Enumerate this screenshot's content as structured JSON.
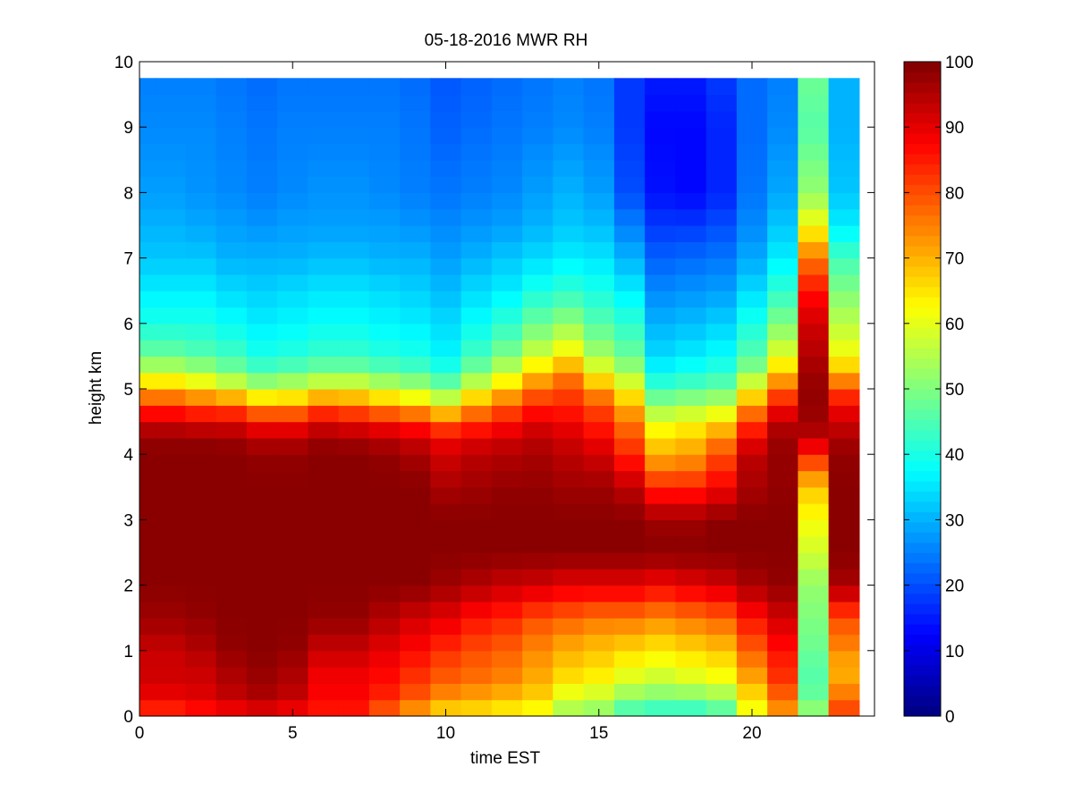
{
  "chart_data": {
    "type": "heatmap",
    "title": "05-18-2016 MWR RH",
    "xlabel": "time EST",
    "ylabel": "height km",
    "xlim": [
      0,
      24
    ],
    "ylim": [
      0,
      10
    ],
    "x_ticks": [
      0,
      5,
      10,
      15,
      20
    ],
    "y_ticks": [
      0,
      1,
      2,
      3,
      4,
      5,
      6,
      7,
      8,
      9,
      10
    ],
    "colorbar": {
      "min": 0,
      "max": 100,
      "ticks": [
        0,
        10,
        20,
        30,
        40,
        50,
        60,
        70,
        80,
        90,
        100
      ],
      "colormap": "jet"
    },
    "grid": false,
    "time_step_hours": 1,
    "height_bin_km": 0.25,
    "data_top_km": 9.75,
    "data_end_hour": 23.5,
    "x": [
      0,
      1,
      2,
      3,
      4,
      5,
      6,
      7,
      8,
      9,
      10,
      11,
      12,
      13,
      14,
      15,
      16,
      17,
      18,
      19,
      20,
      21,
      22,
      23
    ],
    "heights_km": [
      0,
      0.25,
      0.5,
      0.75,
      1,
      1.5,
      2,
      2.5,
      3,
      3.5,
      4,
      4.25,
      4.5,
      4.75,
      5,
      5.25,
      5.5,
      6,
      6.5,
      7,
      7.5,
      8,
      9,
      9.75
    ],
    "profiles": [
      [
        82,
        88,
        92,
        92,
        93,
        97,
        99,
        99,
        99,
        99,
        99,
        98,
        92,
        82,
        70,
        58,
        48,
        40,
        36,
        32,
        30,
        28,
        26,
        25
      ],
      [
        82,
        88,
        92,
        92,
        93,
        97,
        99,
        99,
        99,
        99,
        99,
        98,
        92,
        82,
        70,
        58,
        48,
        40,
        36,
        32,
        30,
        28,
        26,
        25
      ],
      [
        84,
        90,
        92,
        93,
        95,
        98,
        99,
        99,
        99,
        99,
        99,
        98,
        90,
        80,
        66,
        55,
        46,
        40,
        36,
        32,
        29,
        27,
        26,
        25
      ],
      [
        86,
        93,
        95,
        96,
        98,
        99,
        99,
        99,
        99,
        99,
        99,
        97,
        90,
        78,
        62,
        50,
        44,
        38,
        34,
        30,
        28,
        26,
        25,
        24
      ],
      [
        88,
        95,
        97,
        98,
        99,
        99,
        99,
        99,
        99,
        99,
        98,
        94,
        86,
        72,
        56,
        46,
        40,
        36,
        33,
        30,
        27,
        25,
        24,
        23
      ],
      [
        86,
        93,
        95,
        96,
        98,
        99,
        99,
        99,
        99,
        99,
        98,
        94,
        86,
        72,
        58,
        48,
        41,
        37,
        34,
        30,
        28,
        26,
        25,
        24
      ],
      [
        84,
        88,
        88,
        90,
        93,
        98,
        99,
        99,
        99,
        99,
        99,
        97,
        90,
        78,
        62,
        50,
        43,
        38,
        35,
        31,
        28,
        27,
        25,
        24
      ],
      [
        84,
        88,
        88,
        90,
        93,
        98,
        99,
        99,
        99,
        99,
        99,
        96,
        88,
        76,
        62,
        50,
        43,
        38,
        35,
        31,
        28,
        27,
        25,
        24
      ],
      [
        76,
        84,
        86,
        88,
        90,
        95,
        99,
        99,
        99,
        99,
        98,
        94,
        86,
        72,
        58,
        48,
        41,
        37,
        34,
        30,
        28,
        26,
        25,
        24
      ],
      [
        70,
        78,
        82,
        84,
        87,
        92,
        99,
        99,
        99,
        99,
        96,
        92,
        84,
        68,
        55,
        46,
        40,
        36,
        33,
        30,
        27,
        25,
        24,
        23
      ],
      [
        64,
        72,
        78,
        80,
        83,
        90,
        97,
        99,
        99,
        96,
        92,
        88,
        78,
        62,
        50,
        42,
        37,
        34,
        31,
        28,
        26,
        24,
        22,
        21
      ],
      [
        64,
        70,
        76,
        78,
        80,
        86,
        95,
        99,
        99,
        97,
        94,
        90,
        82,
        72,
        60,
        50,
        44,
        38,
        34,
        30,
        27,
        25,
        23,
        22
      ],
      [
        62,
        68,
        74,
        76,
        78,
        84,
        93,
        99,
        99,
        98,
        95,
        92,
        86,
        78,
        68,
        58,
        50,
        42,
        36,
        32,
        28,
        26,
        24,
        23
      ],
      [
        60,
        66,
        70,
        72,
        74,
        80,
        92,
        99,
        99,
        98,
        96,
        94,
        90,
        84,
        76,
        68,
        58,
        48,
        40,
        34,
        30,
        28,
        25,
        24
      ],
      [
        52,
        58,
        64,
        68,
        70,
        78,
        90,
        99,
        99,
        97,
        94,
        92,
        88,
        84,
        80,
        74,
        64,
        52,
        42,
        36,
        32,
        30,
        26,
        25
      ],
      [
        50,
        56,
        62,
        66,
        68,
        76,
        90,
        99,
        99,
        97,
        92,
        88,
        84,
        80,
        72,
        62,
        54,
        46,
        40,
        35,
        31,
        28,
        25,
        24
      ],
      [
        42,
        50,
        58,
        62,
        66,
        76,
        90,
        99,
        99,
        94,
        84,
        80,
        76,
        70,
        62,
        54,
        48,
        42,
        36,
        30,
        25,
        20,
        18,
        18
      ],
      [
        40,
        48,
        56,
        60,
        64,
        74,
        88,
        99,
        97,
        84,
        70,
        66,
        60,
        52,
        44,
        38,
        34,
        30,
        26,
        22,
        18,
        14,
        13,
        15
      ],
      [
        40,
        48,
        58,
        62,
        66,
        76,
        90,
        99,
        97,
        84,
        72,
        68,
        62,
        54,
        46,
        40,
        36,
        31,
        27,
        23,
        18,
        13,
        13,
        15
      ],
      [
        44,
        50,
        60,
        64,
        68,
        78,
        92,
        99,
        99,
        88,
        80,
        74,
        66,
        56,
        48,
        42,
        38,
        33,
        28,
        24,
        20,
        16,
        16,
        18
      ],
      [
        60,
        64,
        70,
        74,
        78,
        86,
        96,
        99,
        99,
        96,
        94,
        88,
        82,
        72,
        62,
        52,
        46,
        40,
        34,
        29,
        26,
        24,
        23,
        23
      ],
      [
        72,
        76,
        82,
        84,
        86,
        92,
        98,
        99,
        99,
        98,
        98,
        97,
        94,
        86,
        78,
        68,
        60,
        50,
        42,
        36,
        32,
        29,
        26,
        25
      ],
      [
        54,
        48,
        46,
        46,
        48,
        50,
        52,
        58,
        62,
        68,
        84,
        94,
        97,
        98,
        98,
        97,
        95,
        92,
        86,
        76,
        62,
        52,
        46,
        48
      ],
      [
        82,
        78,
        72,
        70,
        74,
        80,
        96,
        99,
        99,
        99,
        98,
        96,
        92,
        88,
        80,
        70,
        62,
        56,
        50,
        44,
        36,
        32,
        30,
        30
      ]
    ]
  }
}
